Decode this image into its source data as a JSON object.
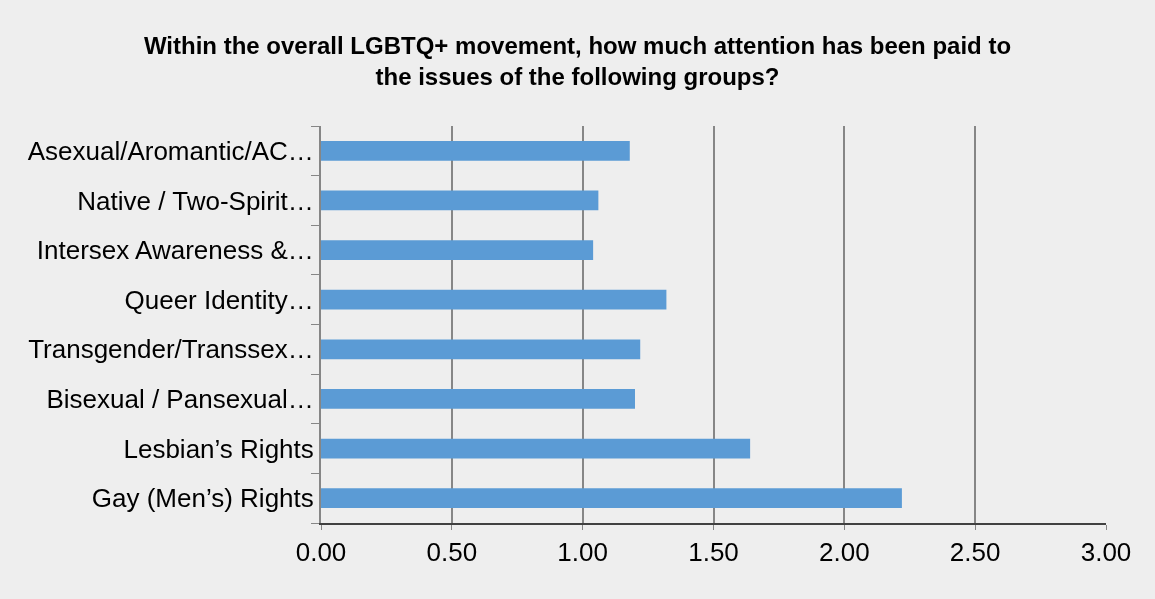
{
  "chart_data": {
    "type": "bar",
    "orientation": "horizontal",
    "title": "Within the overall LGBTQ+ movement, how much attention has been paid to\nthe issues of the following groups?",
    "categories": [
      "Asexual/Aromantic/AC…",
      "Native / Two-Spirit…",
      "Intersex Awareness &…",
      "Queer Identity…",
      "Transgender/Transsex…",
      "Bisexual / Pansexual…",
      "Lesbian’s Rights",
      "Gay (Men’s) Rights"
    ],
    "values": [
      1.18,
      1.06,
      1.04,
      1.32,
      1.22,
      1.2,
      1.64,
      2.22
    ],
    "color": "#5b9bd5",
    "xlim": [
      0,
      3
    ],
    "xticks": [
      {
        "value": 0,
        "label": "0.00"
      },
      {
        "value": 0.5,
        "label": "0.50"
      },
      {
        "value": 1,
        "label": "1.00"
      },
      {
        "value": 1.5,
        "label": "1.50"
      },
      {
        "value": 2,
        "label": "2.00"
      },
      {
        "value": 2.5,
        "label": "2.50"
      },
      {
        "value": 3,
        "label": "3.00"
      }
    ],
    "grid": "x"
  }
}
